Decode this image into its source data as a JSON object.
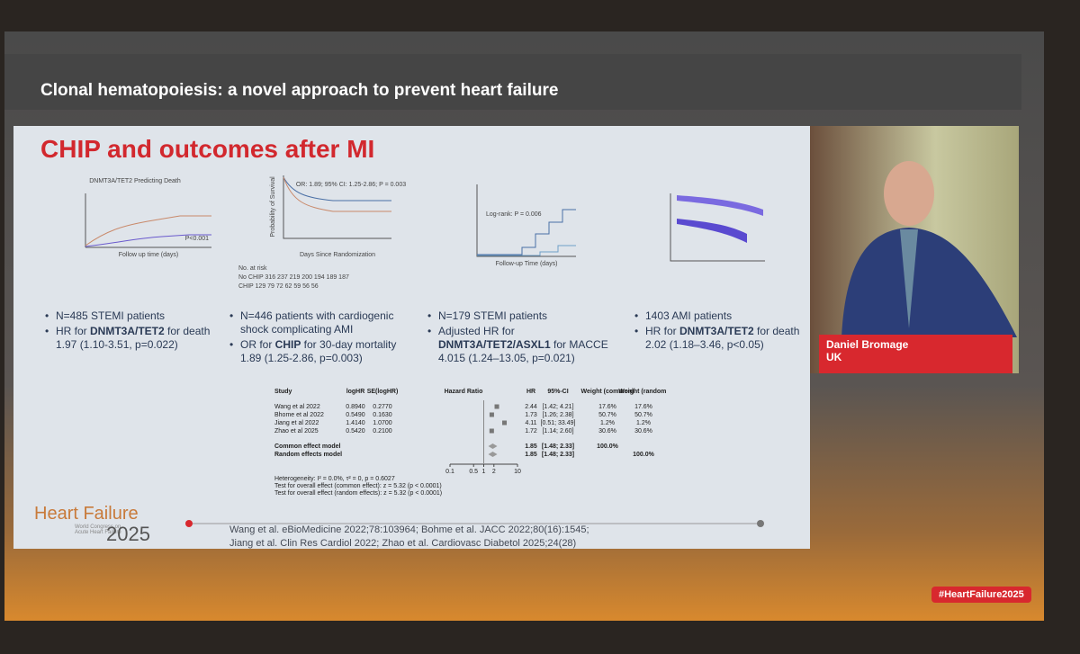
{
  "header": {
    "title": "Clonal hematopoiesis: a novel approach to prevent heart failure"
  },
  "slide": {
    "heading": "CHIP and outcomes after MI",
    "panels": [
      {
        "plot_title": "DNMT3A/TET2 Predicting Death",
        "x_label": "Follow up time (days)",
        "annotation": "P<0.001",
        "bullets": [
          [
            "N=485 STEMI patients"
          ],
          [
            "HR for ",
            "DNMT3A/TET2",
            " for death 1.97 (1.10-3.51, p=0.022)"
          ]
        ]
      },
      {
        "annotation": "OR: 1.89; 95% CI: 1.25-2.86; P = 0.003",
        "y_label": "Probability of Survival",
        "x_label": "Days Since Randomization",
        "xticks": [
          0,
          5,
          10,
          15,
          20,
          25,
          30
        ],
        "risk_table": [
          "No. at risk",
          "No CHIP  316  237  219  200  194  189  187",
          "CHIP  129  79  72  62  59  56  56"
        ],
        "bullets": [
          [
            "N=446 patients with cardiogenic shock complicating AMI"
          ],
          [
            "OR for ",
            "CHIP",
            " for 30-day mortality 1.89 (1.25-2.86, p=0.003)"
          ]
        ]
      },
      {
        "annotation": "Log-rank: P = 0.006",
        "x_label": "Follow-up Time (days)",
        "bullets": [
          [
            "N=179 STEMI patients"
          ],
          [
            "Adjusted HR for ",
            "DNMT3A/TET2/ASXL1",
            " for MACCE 4.015 (1.24–13.05, p=0.021)"
          ]
        ]
      },
      {
        "bullets": [
          [
            "1403 AMI patients"
          ],
          [
            "HR for ",
            "DNMT3A/TET2",
            " for death 2.02 (1.18–3.46, p<0.05)"
          ]
        ]
      }
    ],
    "forest": {
      "headers": [
        "Study",
        "logHR",
        "SE(logHR)",
        "Hazard Ratio",
        "HR",
        "95%-CI",
        "Weight (common)",
        "Weight (random)"
      ],
      "rows": [
        {
          "study": "Wang et al 2022",
          "loghr": "0.8940",
          "se": "0.2770",
          "hr": 2.44,
          "ci": "[1.42; 4.21]",
          "w_common": "17.6%",
          "w_random": "17.6%"
        },
        {
          "study": "Bhome et al 2022",
          "loghr": "0.5490",
          "se": "0.1630",
          "hr": 1.73,
          "ci": "[1.26; 2.38]",
          "w_common": "50.7%",
          "w_random": "50.7%"
        },
        {
          "study": "Jiang et al 2022",
          "loghr": "1.4140",
          "se": "1.0700",
          "hr": 4.11,
          "ci": "[0.51; 33.49]",
          "w_common": "1.2%",
          "w_random": "1.2%"
        },
        {
          "study": "Zhao et al 2025",
          "loghr": "0.5420",
          "se": "0.2100",
          "hr": 1.72,
          "ci": "[1.14; 2.60]",
          "w_common": "30.6%",
          "w_random": "30.6%"
        }
      ],
      "models": [
        {
          "study": "Common effect model",
          "hr": 1.85,
          "ci": "[1.48; 2.33]",
          "w_common": "100.0%"
        },
        {
          "study": "Random effects model",
          "hr": 1.85,
          "ci": "[1.48; 2.33]",
          "w_random": "100.0%"
        }
      ],
      "xticks": [
        0.1,
        0.5,
        1,
        2,
        10
      ],
      "notes": [
        "Heterogeneity: I² = 0.0%, τ² = 0, p = 0.6027",
        "Test for overall effect (common effect): z = 5.32 (p < 0.0001)",
        "Test for overall effect (random effects): z = 5.32 (p < 0.0001)"
      ]
    },
    "citations": [
      "Wang et al. eBioMedicine 2022;78:103964; Bohme et al. JACC 2022;80(16):1545;",
      "Jiang et al. Clin Res Cardiol 2022; Zhao et al. Cardiovasc Diabetol 2025;24(28)"
    ],
    "logo": {
      "name": "Heart Failure",
      "subtitle": "World Congress on Acute Heart Failure",
      "year": "2025"
    }
  },
  "speaker": {
    "name": "Daniel Bromage",
    "country": "UK"
  },
  "hashtag": "#HeartFailure2025"
}
